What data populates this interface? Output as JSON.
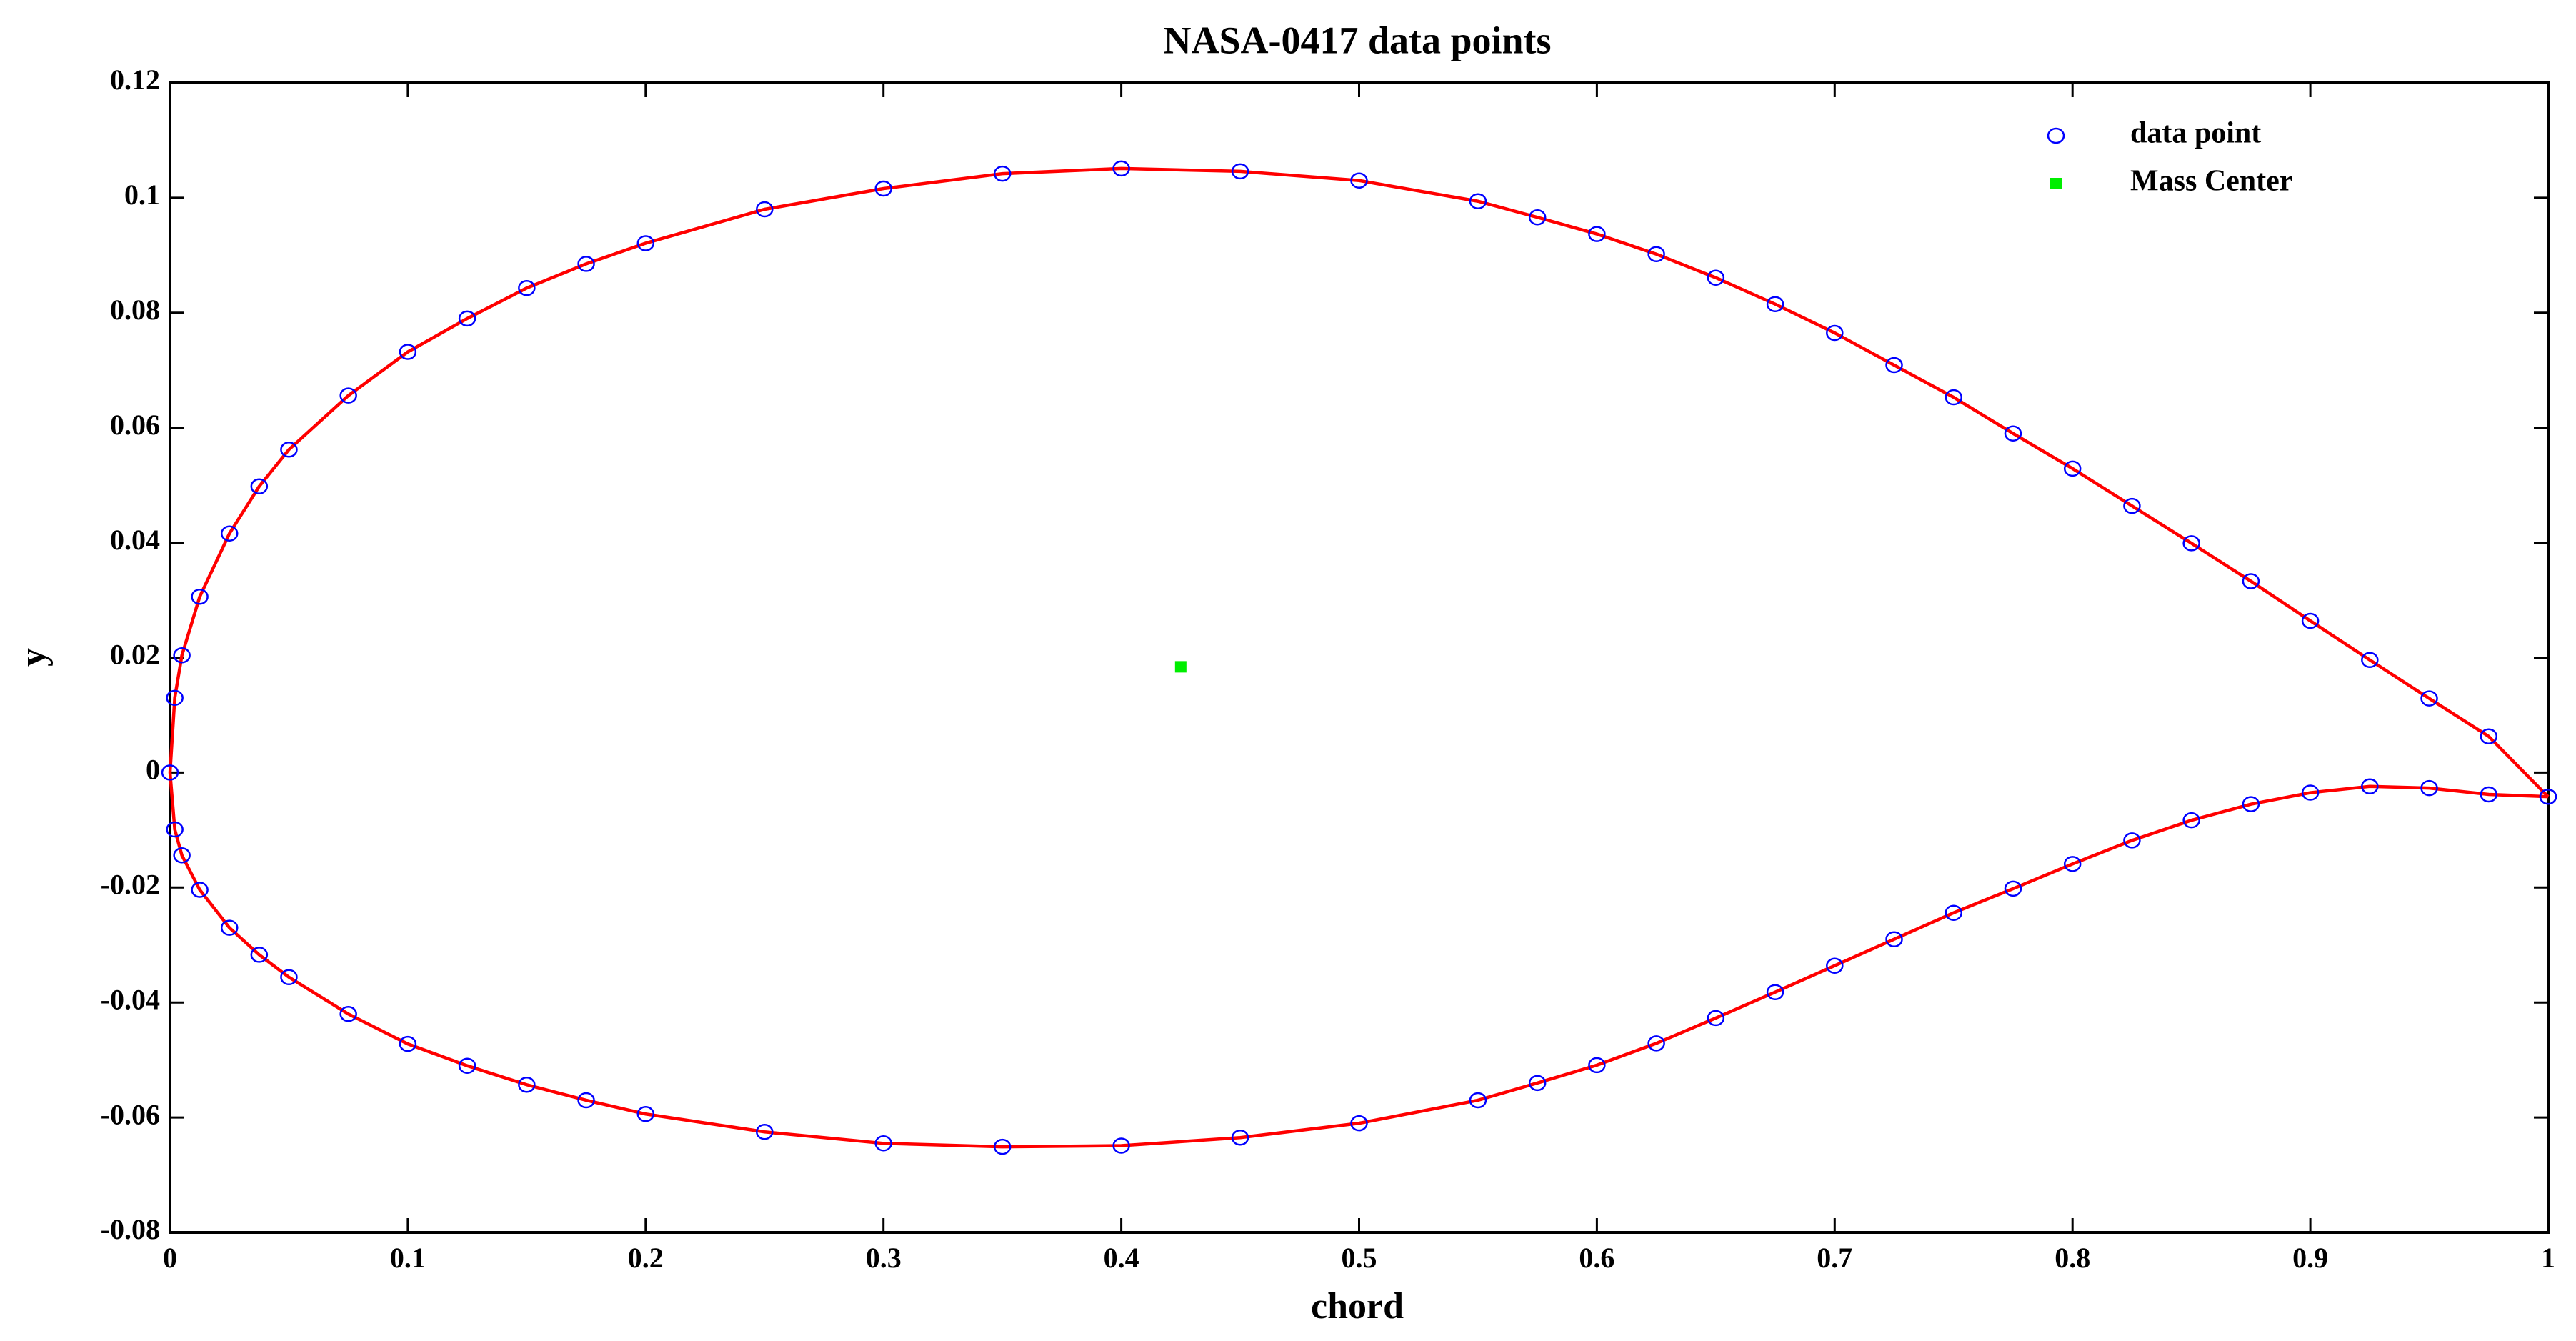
{
  "chart_data": {
    "type": "scatter",
    "title": "NASA-0417 data points",
    "x_label": "chord",
    "y_label": "y",
    "xlim": [
      0,
      1
    ],
    "ylim": [
      -0.08,
      0.12
    ],
    "xticks": [
      0,
      0.1,
      0.2,
      0.3,
      0.4,
      0.5,
      0.6,
      0.7,
      0.8,
      0.9,
      1
    ],
    "yticks": [
      -0.08,
      -0.06,
      -0.04,
      -0.02,
      0,
      0.02,
      0.04,
      0.06,
      0.08,
      0.1,
      0.12
    ],
    "grid": false,
    "legend": "upper right",
    "line_color": "#ff0000",
    "series": [
      {
        "name": "data point",
        "color": "#0000ff",
        "marker": "circle",
        "connect": true,
        "x": [
          1.0,
          0.975,
          0.95,
          0.925,
          0.9,
          0.875,
          0.85,
          0.825,
          0.8,
          0.775,
          0.75,
          0.725,
          0.7,
          0.675,
          0.65,
          0.625,
          0.6,
          0.575,
          0.55,
          0.5,
          0.45,
          0.4,
          0.35,
          0.3,
          0.25,
          0.2,
          0.175,
          0.15,
          0.125,
          0.1,
          0.075,
          0.05,
          0.0375,
          0.025,
          0.0125,
          0.005,
          0.002,
          0,
          0.002,
          0.005,
          0.0125,
          0.025,
          0.0375,
          0.05,
          0.075,
          0.1,
          0.125,
          0.15,
          0.175,
          0.2,
          0.25,
          0.3,
          0.35,
          0.4,
          0.45,
          0.5,
          0.55,
          0.575,
          0.6,
          0.625,
          0.65,
          0.675,
          0.7,
          0.725,
          0.75,
          0.775,
          0.8,
          0.825,
          0.85,
          0.875,
          0.9,
          0.925,
          0.95,
          0.975,
          1.0
        ],
        "values": [
          -0.0042,
          0.0063,
          0.0129,
          0.0196,
          0.0264,
          0.0333,
          0.0399,
          0.0464,
          0.0529,
          0.059,
          0.0653,
          0.0709,
          0.0765,
          0.0815,
          0.0861,
          0.0902,
          0.0937,
          0.0966,
          0.0994,
          0.103,
          0.1046,
          0.1051,
          0.1042,
          0.1016,
          0.098,
          0.0921,
          0.0885,
          0.0843,
          0.079,
          0.0732,
          0.0656,
          0.0562,
          0.0498,
          0.0416,
          0.0306,
          0.0204,
          0.013,
          0,
          -0.0099,
          -0.0144,
          -0.0204,
          -0.027,
          -0.0317,
          -0.0356,
          -0.042,
          -0.0472,
          -0.051,
          -0.0543,
          -0.057,
          -0.0594,
          -0.0625,
          -0.0645,
          -0.0651,
          -0.0649,
          -0.0635,
          -0.061,
          -0.057,
          -0.054,
          -0.0509,
          -0.0471,
          -0.0427,
          -0.0382,
          -0.0336,
          -0.029,
          -0.0244,
          -0.0202,
          -0.0159,
          -0.0118,
          -0.0083,
          -0.0055,
          -0.0035,
          -0.0024,
          -0.0027,
          -0.0038,
          -0.0042
        ]
      },
      {
        "name": "Mass Center",
        "color": "#00ee00",
        "marker": "square",
        "connect": false,
        "x": [
          0.425
        ],
        "values": [
          0.0184
        ]
      }
    ]
  }
}
